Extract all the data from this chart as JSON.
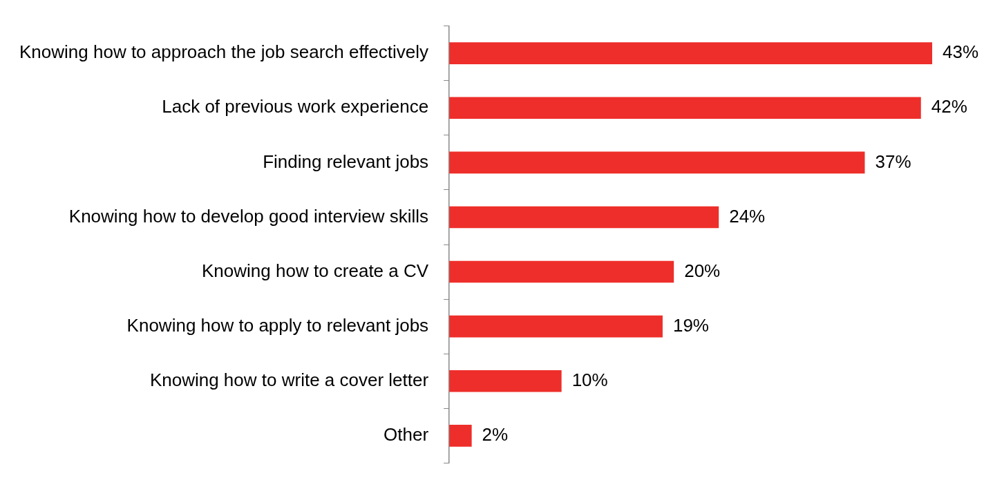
{
  "chart_data": {
    "type": "bar",
    "orientation": "horizontal",
    "categories": [
      "Knowing how to approach the job search effectively",
      "Lack of previous work experience",
      "Finding relevant jobs",
      "Knowing how to develop good interview skills",
      "Knowing how to create a CV",
      "Knowing how to apply to relevant jobs",
      "Knowing how to write a cover letter",
      "Other"
    ],
    "values": [
      43,
      42,
      37,
      24,
      20,
      19,
      10,
      2
    ],
    "value_labels": [
      "43%",
      "42%",
      "37%",
      "24%",
      "20%",
      "19%",
      "10%",
      "2%"
    ],
    "color": "#ee2e2a",
    "legend": false,
    "tick_labels": "y"
  }
}
